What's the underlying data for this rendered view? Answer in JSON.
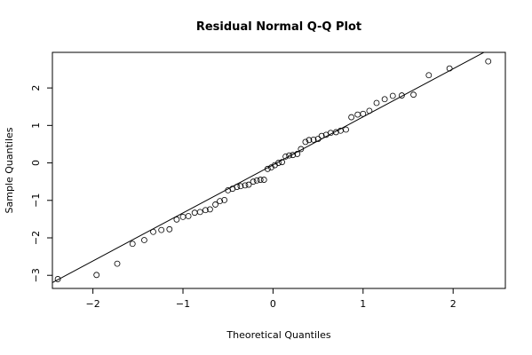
{
  "chart_data": {
    "type": "scatter",
    "title": "Residual Normal Q-Q Plot",
    "xlabel": "Theoretical Quantiles",
    "ylabel": "Sample Quantiles",
    "xlim": [
      -2.45,
      2.58
    ],
    "ylim": [
      -3.35,
      2.95
    ],
    "x_ticks": [
      -2,
      -1,
      0,
      1,
      2
    ],
    "x_tick_labels": [
      "−2",
      "−1",
      "0",
      "1",
      "2"
    ],
    "y_ticks": [
      -3,
      -2,
      -1,
      0,
      1,
      2
    ],
    "y_tick_labels": [
      "−3",
      "−2",
      "−1",
      "0",
      "1",
      "2"
    ],
    "reference_line": {
      "slope": 1.282,
      "intercept": -0.053
    },
    "points": [
      [
        -2.39,
        -3.1
      ],
      [
        -1.96,
        -2.99
      ],
      [
        -1.73,
        -2.69
      ],
      [
        -1.56,
        -2.16
      ],
      [
        -1.43,
        -2.06
      ],
      [
        -1.33,
        -1.84
      ],
      [
        -1.24,
        -1.79
      ],
      [
        -1.15,
        -1.77
      ],
      [
        -1.07,
        -1.51
      ],
      [
        -1.0,
        -1.44
      ],
      [
        -0.94,
        -1.42
      ],
      [
        -0.87,
        -1.33
      ],
      [
        -0.81,
        -1.31
      ],
      [
        -0.75,
        -1.26
      ],
      [
        -0.7,
        -1.24
      ],
      [
        -0.64,
        -1.11
      ],
      [
        -0.59,
        -1.02
      ],
      [
        -0.54,
        -0.99
      ],
      [
        -0.5,
        -0.73
      ],
      [
        -0.45,
        -0.69
      ],
      [
        -0.4,
        -0.64
      ],
      [
        -0.36,
        -0.62
      ],
      [
        -0.31,
        -0.6
      ],
      [
        -0.27,
        -0.58
      ],
      [
        -0.22,
        -0.5
      ],
      [
        -0.18,
        -0.47
      ],
      [
        -0.14,
        -0.45
      ],
      [
        -0.1,
        -0.45
      ],
      [
        -0.06,
        -0.16
      ],
      [
        -0.02,
        -0.12
      ],
      [
        0.02,
        -0.06
      ],
      [
        0.06,
        0.0
      ],
      [
        0.1,
        0.02
      ],
      [
        0.14,
        0.17
      ],
      [
        0.18,
        0.2
      ],
      [
        0.22,
        0.21
      ],
      [
        0.27,
        0.24
      ],
      [
        0.31,
        0.37
      ],
      [
        0.36,
        0.56
      ],
      [
        0.4,
        0.61
      ],
      [
        0.45,
        0.62
      ],
      [
        0.5,
        0.64
      ],
      [
        0.54,
        0.72
      ],
      [
        0.59,
        0.75
      ],
      [
        0.64,
        0.8
      ],
      [
        0.7,
        0.82
      ],
      [
        0.75,
        0.86
      ],
      [
        0.81,
        0.89
      ],
      [
        0.87,
        1.22
      ],
      [
        0.94,
        1.29
      ],
      [
        1.0,
        1.31
      ],
      [
        1.07,
        1.39
      ],
      [
        1.15,
        1.6
      ],
      [
        1.24,
        1.7
      ],
      [
        1.33,
        1.79
      ],
      [
        1.43,
        1.8
      ],
      [
        1.56,
        1.82
      ],
      [
        1.73,
        2.34
      ],
      [
        1.96,
        2.52
      ],
      [
        2.39,
        2.71
      ]
    ]
  }
}
